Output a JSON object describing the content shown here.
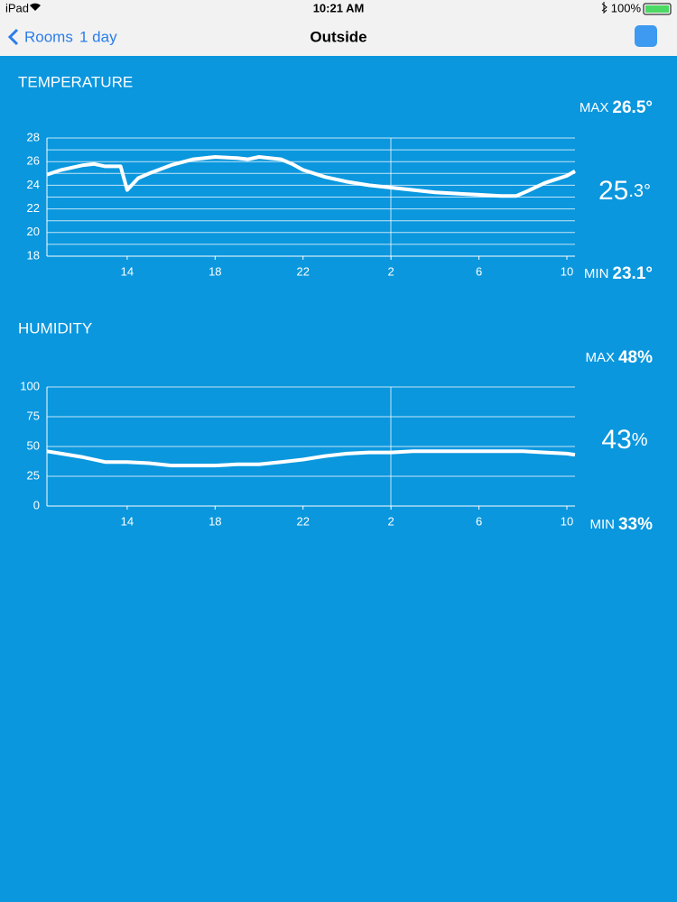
{
  "status_bar": {
    "device": "iPad",
    "time": "10:21 AM",
    "battery": "100%"
  },
  "nav": {
    "back": "Rooms",
    "range": "1 day",
    "title": "Outside"
  },
  "chart_data": [
    {
      "type": "line",
      "title": "TEMPERATURE",
      "color": "#ffffff",
      "x": [
        10.35,
        11,
        12,
        12.5,
        13,
        13.7,
        14.0,
        14.5,
        15,
        16,
        17,
        18,
        19,
        19.5,
        20,
        21,
        21.5,
        22,
        23,
        24,
        25,
        26,
        27,
        28,
        29,
        30,
        31,
        31.7,
        32.2,
        33,
        34,
        34.37
      ],
      "values": [
        24.9,
        25.3,
        25.7,
        25.8,
        25.6,
        25.6,
        23.6,
        24.6,
        25.0,
        25.7,
        26.2,
        26.4,
        26.3,
        26.2,
        26.4,
        26.2,
        25.8,
        25.3,
        24.7,
        24.3,
        24.0,
        23.8,
        23.6,
        23.4,
        23.3,
        23.2,
        23.1,
        23.1,
        23.5,
        24.2,
        24.8,
        25.2
      ],
      "xlim": [
        10.35,
        34.37
      ],
      "xticks": [
        14,
        18,
        22,
        {
          "value": 26,
          "label": "2"
        },
        {
          "value": 30,
          "label": "6"
        },
        {
          "value": 34,
          "label": "10"
        }
      ],
      "ylim": [
        18,
        28
      ],
      "yticks": [
        18,
        20,
        22,
        24,
        26,
        28
      ],
      "minor_yticks": [
        19,
        21,
        23,
        25,
        27
      ],
      "grid": true,
      "max_label": "MAX",
      "max": "26.5°",
      "current_main": "25",
      "current_small": ".3°",
      "min_label": "MIN",
      "min": "23.1°"
    },
    {
      "type": "line",
      "title": "HUMIDITY",
      "color": "#ffffff",
      "x": [
        10.35,
        11,
        12,
        13,
        14,
        15,
        16,
        17,
        18,
        19,
        20,
        21,
        22,
        23,
        24,
        25,
        26,
        27,
        28,
        29,
        30,
        31,
        32,
        33,
        34,
        34.37
      ],
      "values": [
        46,
        44,
        41,
        37,
        37,
        36,
        34,
        34,
        34,
        35,
        35,
        37,
        39,
        42,
        44,
        45,
        45,
        46,
        46,
        46,
        46,
        46,
        46,
        45,
        44,
        43
      ],
      "xlim": [
        10.35,
        34.37
      ],
      "xticks": [
        14,
        18,
        22,
        {
          "value": 26,
          "label": "2"
        },
        {
          "value": 30,
          "label": "6"
        },
        {
          "value": 34,
          "label": "10"
        }
      ],
      "ylim": [
        0,
        100
      ],
      "yticks": [
        0,
        25,
        50,
        75,
        100
      ],
      "grid": true,
      "max_label": "MAX",
      "max": "48%",
      "current_main": "43",
      "current_small": "%",
      "min_label": "MIN",
      "min": "33%"
    }
  ]
}
